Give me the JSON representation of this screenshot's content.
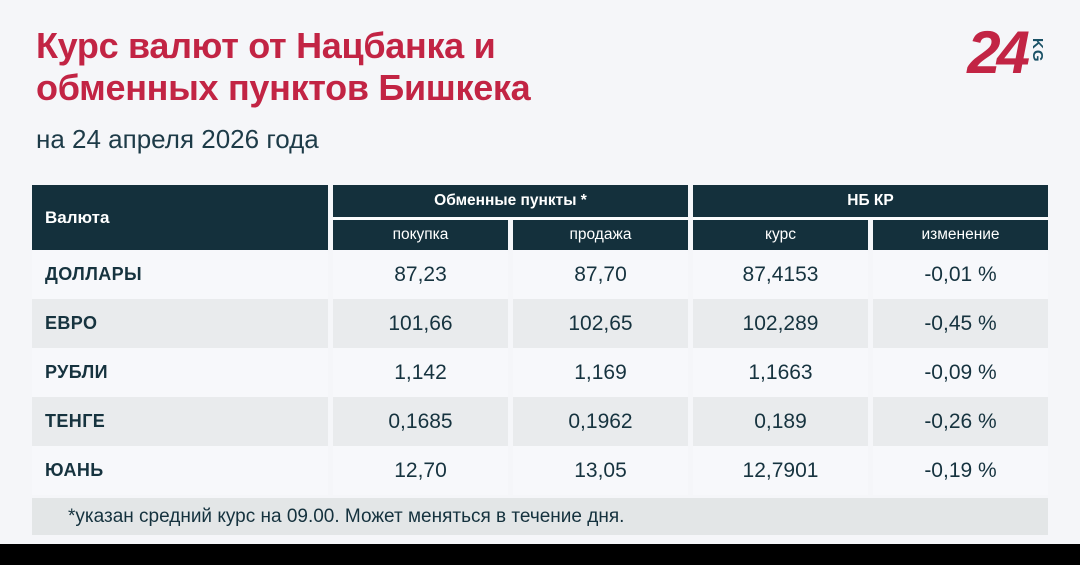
{
  "page": {
    "title_line1": "Курс валют от Нацбанка и",
    "title_line2": "обменных пунктов Бишкека",
    "date": "на 24 апреля 2026 года",
    "footnote": "*указан средний курс на 09.00. Может меняться в течение дня."
  },
  "logo": {
    "number": "24",
    "suffix": "KG"
  },
  "colors": {
    "accent_red": "#c22444",
    "header_bg": "#14303c",
    "page_bg": "#f5f6f9",
    "row_light": "#f7f8fb",
    "row_gray": "#e9ebed",
    "footnote_bg": "#e3e6e7",
    "text_dark": "#16333f",
    "logo_kg_teal": "#1a5166"
  },
  "table": {
    "col_currency": "Валюта",
    "groups": [
      {
        "label": "Обменные пункты *",
        "subs": [
          "покупка",
          "продажа"
        ]
      },
      {
        "label": "НБ КР",
        "subs": [
          "курс",
          "изменение"
        ]
      }
    ],
    "rows": [
      {
        "currency": "ДОЛЛАРЫ",
        "buy": "87,23",
        "sell": "87,70",
        "rate": "87,4153",
        "change": "-0,01 %"
      },
      {
        "currency": "ЕВРО",
        "buy": "101,66",
        "sell": "102,65",
        "rate": "102,289",
        "change": "-0,45 %"
      },
      {
        "currency": "РУБЛИ",
        "buy": "1,142",
        "sell": "1,169",
        "rate": "1,1663",
        "change": "-0,09 %"
      },
      {
        "currency": "ТЕНГЕ",
        "buy": "0,1685",
        "sell": "0,1962",
        "rate": "0,189",
        "change": "-0,26 %"
      },
      {
        "currency": "ЮАНЬ",
        "buy": "12,70",
        "sell": "13,05",
        "rate": "12,7901",
        "change": "-0,19 %"
      }
    ]
  },
  "chart_data": {
    "type": "table",
    "title": "Курс валют от Нацбанка и обменных пунктов Бишкека",
    "subtitle": "на 24 апреля 2026 года",
    "columns": [
      "Валюта",
      "Обменные пункты * — покупка",
      "Обменные пункты * — продажа",
      "НБ КР — курс",
      "НБ КР — изменение"
    ],
    "rows": [
      [
        "ДОЛЛАРЫ",
        "87,23",
        "87,70",
        "87,4153",
        "-0,01 %"
      ],
      [
        "ЕВРО",
        "101,66",
        "102,65",
        "102,289",
        "-0,45 %"
      ],
      [
        "РУБЛИ",
        "1,142",
        "1,169",
        "1,1663",
        "-0,09 %"
      ],
      [
        "ТЕНГЕ",
        "0,1685",
        "0,1962",
        "0,189",
        "-0,26 %"
      ],
      [
        "ЮАНЬ",
        "12,70",
        "13,05",
        "12,7901",
        "-0,19 %"
      ]
    ],
    "footnote": "*указан средний курс на 09.00. Может меняться в течение дня."
  }
}
